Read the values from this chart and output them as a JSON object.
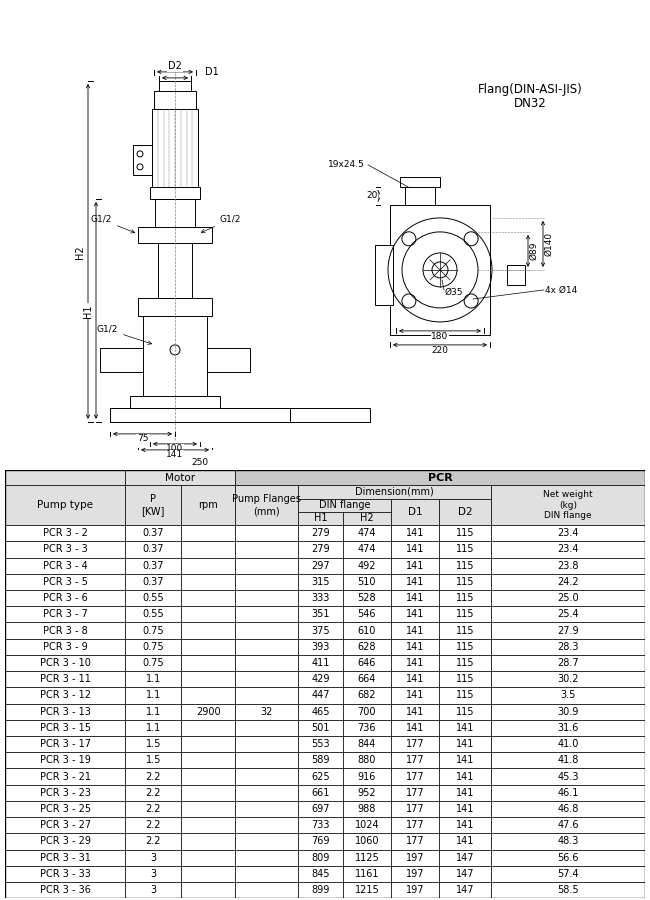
{
  "flange_text_line1": "Flang(DIN-ASI-JIS)",
  "flange_text_line2": "DN32",
  "rows": [
    [
      "PCR 3 - 2",
      "0.37",
      "",
      "",
      "279",
      "474",
      "141",
      "115",
      "23.4"
    ],
    [
      "PCR 3 - 3",
      "0.37",
      "",
      "",
      "279",
      "474",
      "141",
      "115",
      "23.4"
    ],
    [
      "PCR 3 - 4",
      "0.37",
      "",
      "",
      "297",
      "492",
      "141",
      "115",
      "23.8"
    ],
    [
      "PCR 3 - 5",
      "0.37",
      "",
      "",
      "315",
      "510",
      "141",
      "115",
      "24.2"
    ],
    [
      "PCR 3 - 6",
      "0.55",
      "",
      "",
      "333",
      "528",
      "141",
      "115",
      "25.0"
    ],
    [
      "PCR 3 - 7",
      "0.55",
      "",
      "",
      "351",
      "546",
      "141",
      "115",
      "25.4"
    ],
    [
      "PCR 3 - 8",
      "0.75",
      "",
      "",
      "375",
      "610",
      "141",
      "115",
      "27.9"
    ],
    [
      "PCR 3 - 9",
      "0.75",
      "",
      "",
      "393",
      "628",
      "141",
      "115",
      "28.3"
    ],
    [
      "PCR 3 - 10",
      "0.75",
      "",
      "",
      "411",
      "646",
      "141",
      "115",
      "28.7"
    ],
    [
      "PCR 3 - 11",
      "1.1",
      "",
      "",
      "429",
      "664",
      "141",
      "115",
      "30.2"
    ],
    [
      "PCR 3 - 12",
      "1.1",
      "",
      "",
      "447",
      "682",
      "141",
      "115",
      "3.5"
    ],
    [
      "PCR 3 - 13",
      "1.1",
      "2900",
      "32",
      "465",
      "700",
      "141",
      "115",
      "30.9"
    ],
    [
      "PCR 3 - 15",
      "1.1",
      "",
      "",
      "501",
      "736",
      "141",
      "141",
      "31.6"
    ],
    [
      "PCR 3 - 17",
      "1.5",
      "",
      "",
      "553",
      "844",
      "177",
      "141",
      "41.0"
    ],
    [
      "PCR 3 - 19",
      "1.5",
      "",
      "",
      "589",
      "880",
      "177",
      "141",
      "41.8"
    ],
    [
      "PCR 3 - 21",
      "2.2",
      "",
      "",
      "625",
      "916",
      "177",
      "141",
      "45.3"
    ],
    [
      "PCR 3 - 23",
      "2.2",
      "",
      "",
      "661",
      "952",
      "177",
      "141",
      "46.1"
    ],
    [
      "PCR 3 - 25",
      "2.2",
      "",
      "",
      "697",
      "988",
      "177",
      "141",
      "46.8"
    ],
    [
      "PCR 3 - 27",
      "2.2",
      "",
      "",
      "733",
      "1024",
      "177",
      "141",
      "47.6"
    ],
    [
      "PCR 3 - 29",
      "2.2",
      "",
      "",
      "769",
      "1060",
      "177",
      "141",
      "48.3"
    ],
    [
      "PCR 3 - 31",
      "3",
      "",
      "",
      "809",
      "1125",
      "197",
      "147",
      "56.6"
    ],
    [
      "PCR 3 - 33",
      "3",
      "",
      "",
      "845",
      "1161",
      "197",
      "147",
      "57.4"
    ],
    [
      "PCR 3 - 36",
      "3",
      "",
      "",
      "899",
      "1215",
      "197",
      "147",
      "58.5"
    ]
  ],
  "bg_color": "#ffffff",
  "lc": "#000000",
  "header_bg": "#c8c8c8",
  "subheader_bg": "#e0e0e0"
}
